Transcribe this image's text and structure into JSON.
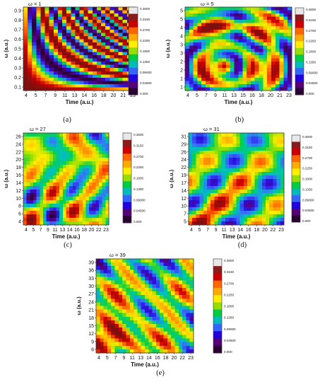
{
  "figure": {
    "captions": [
      "(a)",
      "(b)",
      "(c)",
      "(d)",
      "(e)"
    ]
  },
  "colorbar": {
    "ticks": [
      "0.3600",
      "0.3150",
      "0.2700",
      "0.2250",
      "0.1800",
      "0.1350",
      "0.09000",
      "0.04500",
      "0.000"
    ],
    "colors": [
      "#e8e8e8",
      "#8b1a1a",
      "#cc0000",
      "#ff6600",
      "#ffaa00",
      "#ffee00",
      "#99dd00",
      "#00cc44",
      "#00bbbb",
      "#3366ff",
      "#2200dd",
      "#550077",
      "#2a0033"
    ]
  },
  "chart_data": [
    {
      "type": "heatmap",
      "title": "ω = 1",
      "xlabel": "Time (a.u.)",
      "ylabel": "ω (a.u.)",
      "xticks": [
        "4",
        "5",
        "7",
        "9",
        "11",
        "13",
        "14",
        "16",
        "18",
        "20",
        "21",
        "23"
      ],
      "yticks": [
        "0.1",
        "0.2",
        "0.3",
        "0.4",
        "0.5",
        "0.6",
        "0.7",
        "0.8",
        "0.9"
      ],
      "colorbar_range": [
        0,
        0.36
      ],
      "caption": "(a)"
    },
    {
      "type": "heatmap",
      "title": "ω = 5",
      "xlabel": "Time (a.u.)",
      "ylabel": "ω (a.u.)",
      "xticks": [
        "4",
        "5",
        "7",
        "9",
        "11",
        "13",
        "15",
        "16",
        "18",
        "20",
        "21",
        "23"
      ],
      "yticks": [
        "1",
        "1",
        "2",
        "2",
        "3",
        "3",
        "4",
        "4",
        "5",
        "5"
      ],
      "colorbar_range": [
        0,
        0.36
      ],
      "caption": "(b)"
    },
    {
      "type": "heatmap",
      "title": "ω = 27",
      "xlabel": "Time (a.u.)",
      "ylabel": "ω (a.u.)",
      "xticks": [
        "4",
        "5",
        "7",
        "9",
        "11",
        "13",
        "14",
        "16",
        "18",
        "20",
        "22",
        "23"
      ],
      "yticks": [
        "4",
        "6",
        "8",
        "10",
        "12",
        "14",
        "16",
        "18",
        "20",
        "22",
        "24",
        "26"
      ],
      "colorbar_range": [
        0,
        0.36
      ],
      "caption": "(c)"
    },
    {
      "type": "heatmap",
      "title": "ω = 31",
      "xlabel": "Time (a.u.)",
      "ylabel": "ω (a.u.)",
      "xticks": [
        "4",
        "5",
        "7",
        "9",
        "11",
        "13",
        "14",
        "16",
        "18",
        "20",
        "22",
        "23"
      ],
      "yticks": [
        "5",
        "7",
        "10",
        "12",
        "14",
        "17",
        "19",
        "22",
        "24",
        "26",
        "29",
        "31"
      ],
      "colorbar_range": [
        0,
        0.36
      ],
      "caption": "(d)"
    },
    {
      "type": "heatmap",
      "title": "ω = 39",
      "xlabel": "Time (a.u.)",
      "ylabel": "ω (a.u.)",
      "xticks": [
        "4",
        "5",
        "7",
        "9",
        "11",
        "13",
        "14",
        "16",
        "18",
        "20",
        "22",
        "23"
      ],
      "yticks": [
        "6",
        "9",
        "12",
        "15",
        "18",
        "21",
        "24",
        "27",
        "30",
        "33",
        "36",
        "39"
      ],
      "colorbar_range": [
        0,
        0.36
      ],
      "caption": "(e)"
    }
  ]
}
